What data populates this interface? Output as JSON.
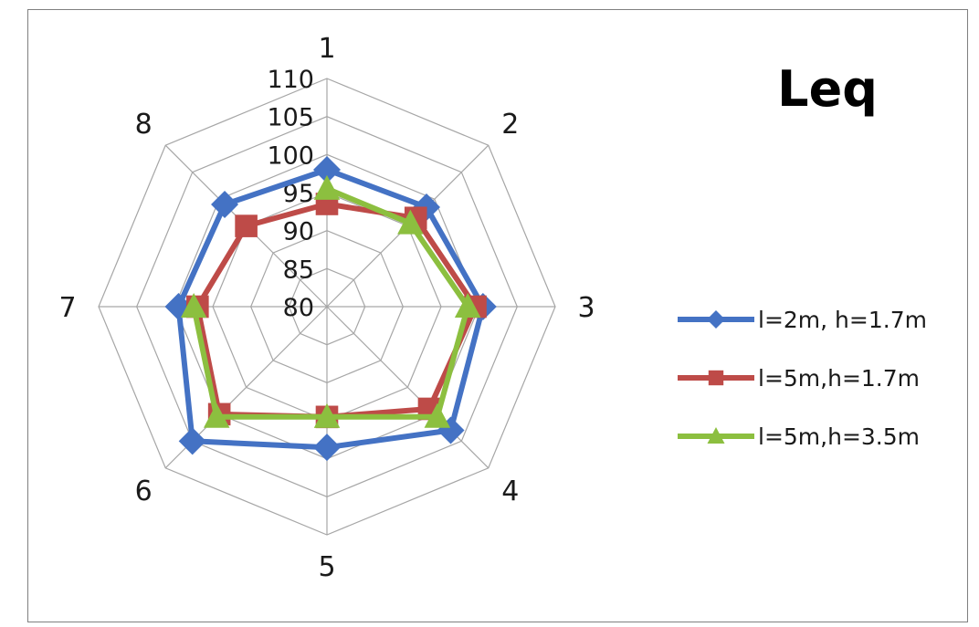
{
  "chart_data": {
    "type": "radar",
    "title": "Leq",
    "categories": [
      "1",
      "2",
      "3",
      "4",
      "5",
      "6",
      "7",
      "8"
    ],
    "ticks": [
      "80",
      "85",
      "90",
      "95",
      "100",
      "105",
      "110"
    ],
    "rlim": [
      80,
      110
    ],
    "grid": true,
    "legend_position": "right",
    "series": [
      {
        "name": "l=2m, h=1.7m",
        "color": "#4472c4",
        "marker": "diamond",
        "values": [
          98,
          98.5,
          100.5,
          103,
          98.5,
          105,
          99.5,
          99
        ]
      },
      {
        "name": "l=5m,h=1.7m",
        "color": "#be4b48",
        "marker": "square",
        "values": [
          93.5,
          96.5,
          99.5,
          99,
          94.5,
          100,
          97,
          95
        ]
      },
      {
        "name": "l=5m,h=3.5m",
        "color": "#8cbf3f",
        "marker": "triangle",
        "values": [
          95.5,
          95.5,
          98.5,
          100.5,
          94.5,
          100.5,
          97.5,
          null
        ]
      }
    ]
  }
}
